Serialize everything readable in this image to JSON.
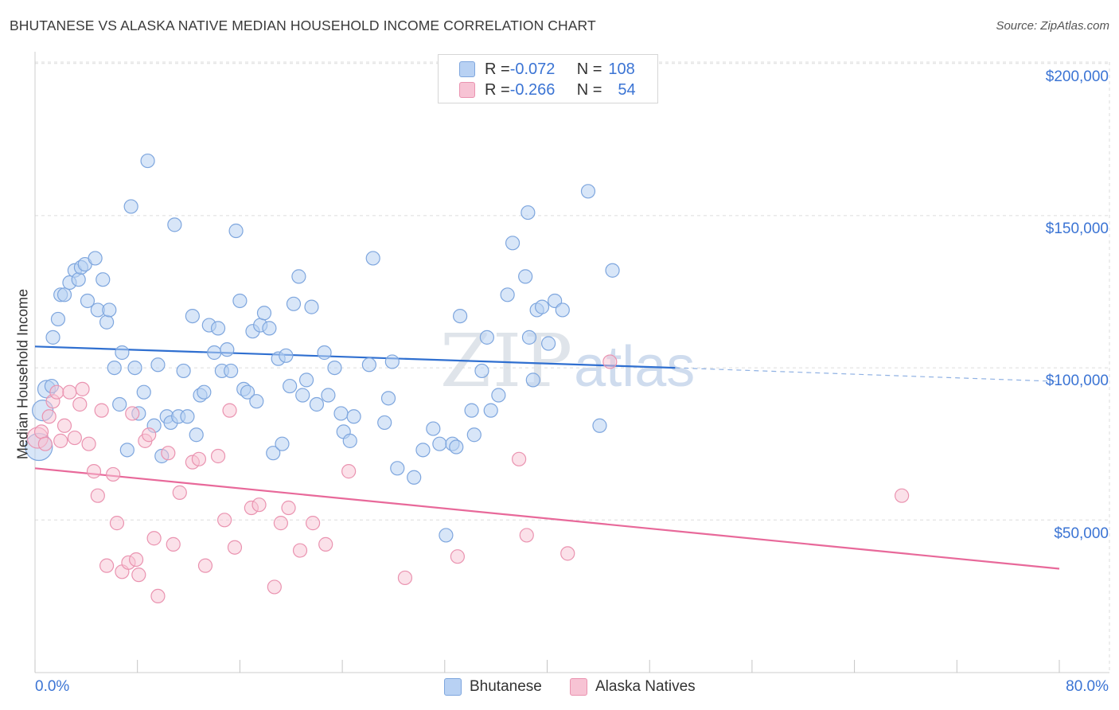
{
  "header": {
    "title": "BHUTANESE VS ALASKA NATIVE MEDIAN HOUSEHOLD INCOME CORRELATION CHART",
    "source": "Source: ZipAtlas.com"
  },
  "watermark": {
    "zip": "ZIP",
    "atlas": "atlas"
  },
  "legend": {
    "rows": [
      {
        "r_label": "R = ",
        "r_value": "-0.072",
        "n_label": "N = ",
        "n_value": "108"
      },
      {
        "r_label": "R = ",
        "r_value": "-0.266",
        "n_label": "N = ",
        "n_value": "54"
      }
    ]
  },
  "bottom_legend": {
    "items": [
      {
        "label": "Bhutanese"
      },
      {
        "label": "Alaska Natives"
      }
    ]
  },
  "axes": {
    "ylabel": "Median Household Income",
    "x_min_label": "0.0%",
    "x_max_label": "80.0%",
    "y_ticks": [
      "$200,000",
      "$150,000",
      "$100,000",
      "$50,000"
    ]
  },
  "colors": {
    "blue_fill": "#b8d1f3",
    "blue_stroke": "#7ea6de",
    "blue_line": "#2f6fd0",
    "pink_fill": "#f7c3d4",
    "pink_stroke": "#ea93b0",
    "pink_line": "#e8699a",
    "grid": "#dddddd",
    "axis_text": "#3b74d4"
  },
  "chart_data": {
    "type": "scatter",
    "title": "BHUTANESE VS ALASKA NATIVE MEDIAN HOUSEHOLD INCOME CORRELATION CHART",
    "xlabel": "",
    "ylabel": "Median Household Income",
    "xlim": [
      0,
      80
    ],
    "ylim": [
      0,
      210000
    ],
    "y_gridlines": [
      50000,
      100000,
      150000,
      200000
    ],
    "legend_position": "top-center",
    "series": [
      {
        "name": "Bhutanese",
        "R": -0.072,
        "N": 108,
        "trend": {
          "x": [
            0,
            50
          ],
          "y": [
            107000,
            100000
          ],
          "dashed_extension_to_x": 80,
          "dashed_end_y": 95500
        },
        "points": [
          [
            0.3,
            74000
          ],
          [
            0.6,
            86000
          ],
          [
            0.9,
            93000
          ],
          [
            1.3,
            94000
          ],
          [
            1.4,
            110000
          ],
          [
            1.8,
            116000
          ],
          [
            2.0,
            124000
          ],
          [
            2.3,
            124000
          ],
          [
            2.7,
            128000
          ],
          [
            3.1,
            132000
          ],
          [
            3.4,
            129000
          ],
          [
            3.6,
            133000
          ],
          [
            3.9,
            134000
          ],
          [
            4.1,
            122000
          ],
          [
            4.7,
            136000
          ],
          [
            4.9,
            119000
          ],
          [
            5.3,
            129000
          ],
          [
            5.6,
            115000
          ],
          [
            5.8,
            119000
          ],
          [
            6.2,
            100000
          ],
          [
            6.6,
            88000
          ],
          [
            6.8,
            105000
          ],
          [
            7.2,
            73000
          ],
          [
            7.5,
            153000
          ],
          [
            7.8,
            100000
          ],
          [
            8.1,
            85000
          ],
          [
            8.5,
            92000
          ],
          [
            8.8,
            168000
          ],
          [
            9.3,
            81000
          ],
          [
            9.6,
            101000
          ],
          [
            9.9,
            71000
          ],
          [
            10.3,
            84000
          ],
          [
            10.6,
            82000
          ],
          [
            10.9,
            147000
          ],
          [
            11.2,
            84000
          ],
          [
            11.6,
            99000
          ],
          [
            11.9,
            84000
          ],
          [
            12.3,
            117000
          ],
          [
            12.6,
            78000
          ],
          [
            12.9,
            91000
          ],
          [
            13.2,
            92000
          ],
          [
            13.6,
            114000
          ],
          [
            14.0,
            105000
          ],
          [
            14.3,
            113000
          ],
          [
            14.6,
            99000
          ],
          [
            15.0,
            106000
          ],
          [
            15.3,
            99000
          ],
          [
            15.7,
            145000
          ],
          [
            16.0,
            122000
          ],
          [
            16.3,
            93000
          ],
          [
            16.6,
            92000
          ],
          [
            17.0,
            112000
          ],
          [
            17.3,
            89000
          ],
          [
            17.6,
            114000
          ],
          [
            17.9,
            118000
          ],
          [
            18.3,
            113000
          ],
          [
            18.6,
            72000
          ],
          [
            19.0,
            103000
          ],
          [
            19.3,
            75000
          ],
          [
            19.6,
            104000
          ],
          [
            19.9,
            94000
          ],
          [
            20.2,
            121000
          ],
          [
            20.6,
            130000
          ],
          [
            20.9,
            91000
          ],
          [
            21.2,
            96000
          ],
          [
            21.6,
            120000
          ],
          [
            22.0,
            88000
          ],
          [
            22.6,
            105000
          ],
          [
            22.9,
            91000
          ],
          [
            23.4,
            100000
          ],
          [
            23.9,
            85000
          ],
          [
            24.1,
            79000
          ],
          [
            24.6,
            76000
          ],
          [
            24.9,
            84000
          ],
          [
            26.1,
            101000
          ],
          [
            26.4,
            136000
          ],
          [
            27.3,
            82000
          ],
          [
            27.6,
            90000
          ],
          [
            27.9,
            102000
          ],
          [
            28.3,
            67000
          ],
          [
            29.6,
            64000
          ],
          [
            30.3,
            73000
          ],
          [
            31.1,
            80000
          ],
          [
            31.6,
            75000
          ],
          [
            32.1,
            45000
          ],
          [
            32.6,
            75000
          ],
          [
            32.9,
            74000
          ],
          [
            33.2,
            117000
          ],
          [
            34.1,
            86000
          ],
          [
            34.3,
            78000
          ],
          [
            34.9,
            99000
          ],
          [
            35.3,
            110000
          ],
          [
            35.6,
            86000
          ],
          [
            36.2,
            91000
          ],
          [
            36.9,
            124000
          ],
          [
            37.3,
            141000
          ],
          [
            38.3,
            130000
          ],
          [
            38.6,
            110000
          ],
          [
            38.9,
            96000
          ],
          [
            39.2,
            119000
          ],
          [
            39.6,
            120000
          ],
          [
            40.1,
            108000
          ],
          [
            40.6,
            122000
          ],
          [
            41.2,
            119000
          ],
          [
            38.5,
            151000
          ],
          [
            43.2,
            158000
          ],
          [
            44.1,
            81000
          ],
          [
            45.1,
            132000
          ]
        ]
      },
      {
        "name": "Alaska Natives",
        "R": -0.266,
        "N": 54,
        "trend": {
          "x": [
            0,
            80
          ],
          "y": [
            67000,
            34000
          ]
        },
        "points": [
          [
            0.2,
            77000
          ],
          [
            0.5,
            79000
          ],
          [
            0.8,
            75000
          ],
          [
            1.1,
            84000
          ],
          [
            1.4,
            89000
          ],
          [
            1.7,
            92000
          ],
          [
            2.0,
            76000
          ],
          [
            2.3,
            81000
          ],
          [
            2.7,
            92000
          ],
          [
            3.1,
            77000
          ],
          [
            3.5,
            88000
          ],
          [
            3.7,
            93000
          ],
          [
            4.2,
            75000
          ],
          [
            4.6,
            66000
          ],
          [
            4.9,
            58000
          ],
          [
            5.2,
            86000
          ],
          [
            5.6,
            35000
          ],
          [
            6.1,
            65000
          ],
          [
            6.4,
            49000
          ],
          [
            6.8,
            33000
          ],
          [
            7.3,
            36000
          ],
          [
            7.6,
            85000
          ],
          [
            7.9,
            37000
          ],
          [
            8.1,
            32000
          ],
          [
            8.6,
            76000
          ],
          [
            8.9,
            78000
          ],
          [
            9.3,
            44000
          ],
          [
            9.6,
            25000
          ],
          [
            10.4,
            72000
          ],
          [
            10.8,
            42000
          ],
          [
            11.3,
            59000
          ],
          [
            12.3,
            69000
          ],
          [
            12.8,
            70000
          ],
          [
            13.3,
            35000
          ],
          [
            14.3,
            71000
          ],
          [
            14.8,
            50000
          ],
          [
            15.2,
            86000
          ],
          [
            15.6,
            41000
          ],
          [
            16.9,
            54000
          ],
          [
            17.5,
            55000
          ],
          [
            18.7,
            28000
          ],
          [
            19.2,
            49000
          ],
          [
            19.8,
            54000
          ],
          [
            20.7,
            40000
          ],
          [
            21.7,
            49000
          ],
          [
            22.7,
            42000
          ],
          [
            24.5,
            66000
          ],
          [
            28.9,
            31000
          ],
          [
            33.0,
            38000
          ],
          [
            37.8,
            70000
          ],
          [
            38.4,
            45000
          ],
          [
            41.6,
            39000
          ],
          [
            44.9,
            102000
          ],
          [
            67.7,
            58000
          ]
        ]
      }
    ]
  }
}
